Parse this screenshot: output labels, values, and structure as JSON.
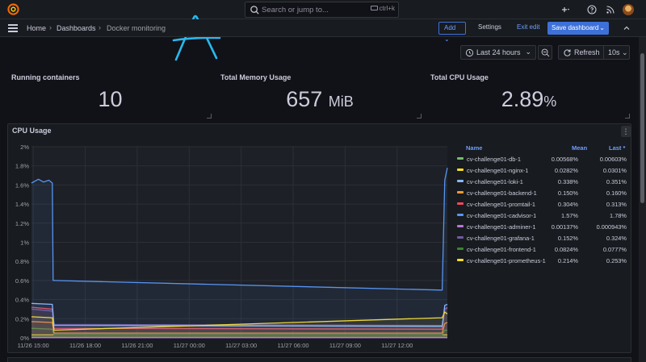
{
  "search": {
    "placeholder": "Search or jump to...",
    "shortcut": "ctrl+k"
  },
  "breadcrumb": {
    "home": "Home",
    "dashboards": "Dashboards",
    "current": "Docker monitoring"
  },
  "toolbar": {
    "add_label": "Add",
    "settings_label": "Settings",
    "exit_edit_label": "Exit edit",
    "save_label": "Save dashboard"
  },
  "time": {
    "range_label": "Last 24 hours",
    "refresh_label": "Refresh",
    "refresh_interval": "10s"
  },
  "stats": [
    {
      "title": "Running containers",
      "value": "10",
      "unit": ""
    },
    {
      "title": "Total Memory Usage",
      "value": "657",
      "unit": "MiB"
    },
    {
      "title": "Total CPU Usage",
      "value": "2.89",
      "unit": "%"
    }
  ],
  "annotation_text": "A",
  "cpu_panel": {
    "title": "CPU Usage",
    "menu_icon": "more-vertical-icon"
  },
  "legend": {
    "headers": {
      "name": "Name",
      "mean": "Mean",
      "last": "Last *"
    },
    "rows": [
      {
        "name": "cv-challenge01-db-1",
        "mean": "0.00568%",
        "last": "0.00603%",
        "color": "#73bf69"
      },
      {
        "name": "cv-challenge01-nginx-1",
        "mean": "0.0282%",
        "last": "0.0301%",
        "color": "#fade2a"
      },
      {
        "name": "cv-challenge01-loki-1",
        "mean": "0.338%",
        "last": "0.351%",
        "color": "#8ab8ff"
      },
      {
        "name": "cv-challenge01-backend-1",
        "mean": "0.150%",
        "last": "0.160%",
        "color": "#ff9830"
      },
      {
        "name": "cv-challenge01-promtail-1",
        "mean": "0.304%",
        "last": "0.313%",
        "color": "#f2495c"
      },
      {
        "name": "cv-challenge01-cadvisor-1",
        "mean": "1.57%",
        "last": "1.78%",
        "color": "#5794f2"
      },
      {
        "name": "cv-challenge01-adminer-1",
        "mean": "0.00137%",
        "last": "0.000943%",
        "color": "#b877d9"
      },
      {
        "name": "cv-challenge01-grafana-1",
        "mean": "0.152%",
        "last": "0.324%",
        "color": "#705da0"
      },
      {
        "name": "cv-challenge01-frontend-1",
        "mean": "0.0824%",
        "last": "0.0777%",
        "color": "#37872d"
      },
      {
        "name": "cv-challenge01-prometheus-1",
        "mean": "0.214%",
        "last": "0.253%",
        "color": "#fade2a"
      }
    ]
  },
  "chart_data": {
    "type": "line",
    "title": "CPU Usage",
    "xlabel": "",
    "ylabel": "",
    "ylim": [
      0,
      2
    ],
    "yticks": [
      "0%",
      "0.2%",
      "0.4%",
      "0.6%",
      "0.8%",
      "1%",
      "1.2%",
      "1.4%",
      "1.6%",
      "1.8%",
      "2%"
    ],
    "ytick_values": [
      0,
      0.2,
      0.4,
      0.6,
      0.8,
      1.0,
      1.2,
      1.4,
      1.6,
      1.8,
      2.0
    ],
    "xticks": [
      "11/26 15:00",
      "11/26 18:00",
      "11/26 21:00",
      "11/27 00:00",
      "11/27 03:00",
      "11/27 06:00",
      "11/27 09:00",
      "11/27 12:00"
    ],
    "xtick_hours": [
      0,
      3,
      6,
      9,
      12,
      15,
      18,
      21
    ],
    "xlim_hours": [
      -0.1,
      23.9
    ],
    "series": [
      {
        "name": "cv-challenge01-cadvisor-1",
        "color": "#5794f2",
        "x": [
          -0.1,
          0.3,
          0.6,
          0.9,
          1.1,
          1.15,
          1.2,
          23.6,
          23.75,
          23.9
        ],
        "y": [
          1.62,
          1.66,
          1.63,
          1.65,
          1.62,
          0.6,
          0.6,
          0.5,
          1.65,
          1.78
        ]
      },
      {
        "name": "cv-challenge01-prometheus-1",
        "color": "#fade2a",
        "x": [
          -0.1,
          1.1,
          1.2,
          23.6,
          23.75,
          23.9
        ],
        "y": [
          0.22,
          0.21,
          0.08,
          0.21,
          0.27,
          0.25
        ]
      },
      {
        "name": "cv-challenge01-loki-1",
        "color": "#8ab8ff",
        "x": [
          -0.1,
          1.1,
          1.2,
          23.6,
          23.75,
          23.9
        ],
        "y": [
          0.36,
          0.35,
          0.13,
          0.12,
          0.34,
          0.35
        ]
      },
      {
        "name": "cv-challenge01-grafana-1",
        "color": "#705da0",
        "x": [
          -0.1,
          1.1,
          1.2,
          23.6,
          23.75,
          23.9
        ],
        "y": [
          0.3,
          0.28,
          0.14,
          0.13,
          0.3,
          0.32
        ]
      },
      {
        "name": "cv-challenge01-promtail-1",
        "color": "#f2495c",
        "x": [
          -0.1,
          1.1,
          1.2,
          23.6,
          23.75,
          23.9
        ],
        "y": [
          0.32,
          0.3,
          0.1,
          0.09,
          0.3,
          0.31
        ]
      },
      {
        "name": "cv-challenge01-backend-1",
        "color": "#ff9830",
        "x": [
          -0.1,
          1.1,
          1.2,
          23.6,
          23.75,
          23.9
        ],
        "y": [
          0.17,
          0.16,
          0.05,
          0.05,
          0.15,
          0.16
        ]
      },
      {
        "name": "cv-challenge01-frontend-1",
        "color": "#37872d",
        "x": [
          -0.1,
          1.1,
          1.2,
          23.6,
          23.75,
          23.9
        ],
        "y": [
          0.1,
          0.09,
          0.03,
          0.03,
          0.08,
          0.08
        ]
      },
      {
        "name": "cv-challenge01-nginx-1",
        "color": "#fade2a",
        "x": [
          -0.1,
          23.9
        ],
        "y": [
          0.03,
          0.03
        ]
      },
      {
        "name": "cv-challenge01-db-1",
        "color": "#73bf69",
        "x": [
          -0.1,
          23.9
        ],
        "y": [
          0.006,
          0.006
        ]
      },
      {
        "name": "cv-challenge01-adminer-1",
        "color": "#b877d9",
        "x": [
          -0.1,
          23.9
        ],
        "y": [
          0.001,
          0.001
        ]
      }
    ]
  }
}
